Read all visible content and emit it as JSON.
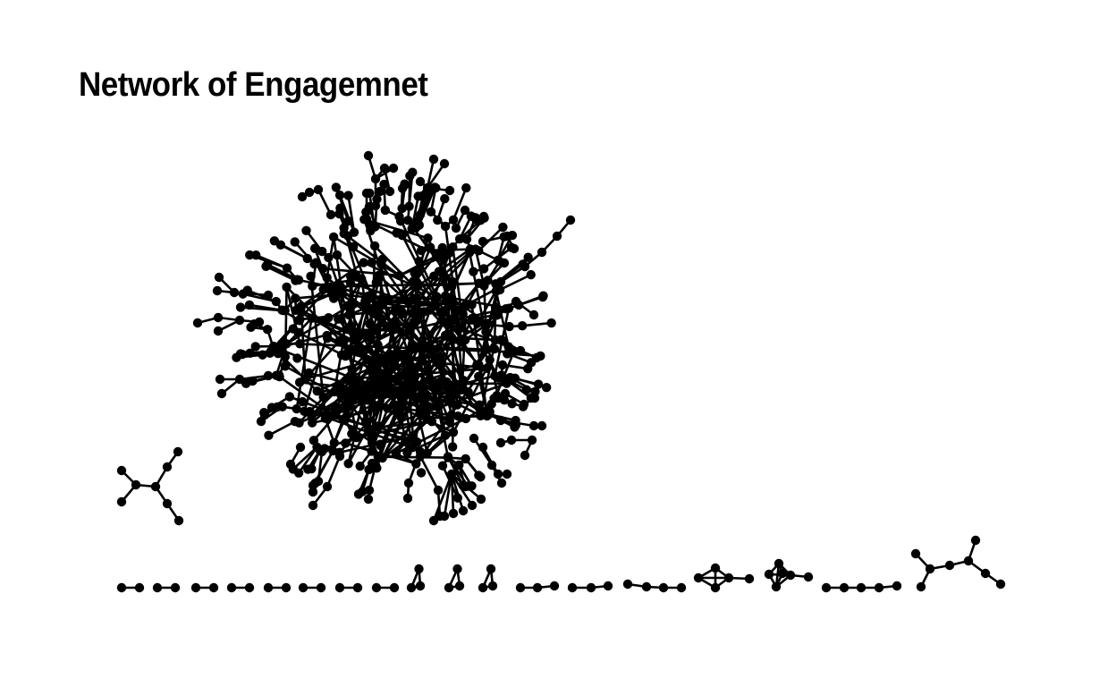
{
  "title": "Network of Engagemnet",
  "node_color": "#000000",
  "edge_color": "#000000",
  "background": "#ffffff"
}
